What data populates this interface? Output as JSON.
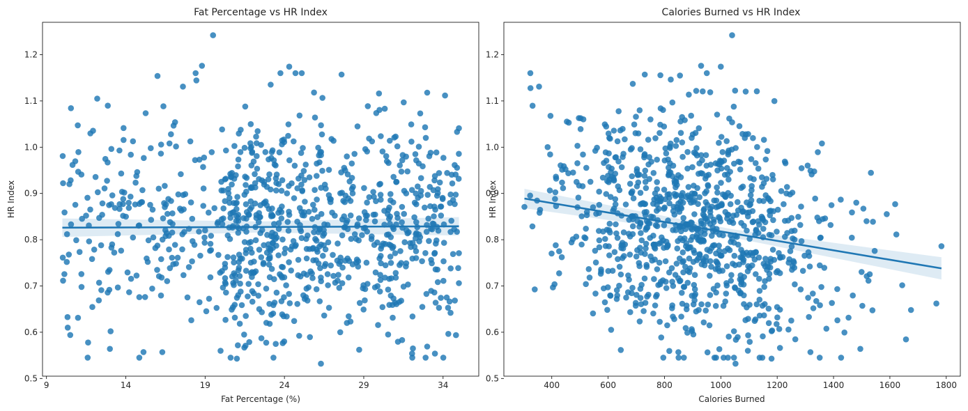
{
  "chart_data": [
    {
      "type": "scatter",
      "title": "Fat Percentage vs HR Index",
      "xlabel": "Fat Percentage (%)",
      "ylabel": "HR Index",
      "xlim": [
        8.75,
        36.25
      ],
      "ylim": [
        0.505,
        1.27
      ],
      "xticks": [
        9,
        14,
        19,
        24,
        29,
        34
      ],
      "yticks": [
        0.5,
        0.6,
        0.7,
        0.8,
        0.9,
        1.0,
        1.1,
        1.2
      ],
      "ytick_labels": [
        "0.5",
        "0.6",
        "0.7",
        "0.8",
        "0.9",
        "1.0",
        "1.1",
        "1.2"
      ],
      "grid": false,
      "point_color": "#1f77b4",
      "point_count": 973,
      "x_range": [
        10,
        35
      ],
      "y_range": [
        0.53,
        1.24
      ],
      "x_center": 26,
      "y_center": 0.83,
      "highlighted_points": [
        {
          "x": 19.5,
          "y": 1.242
        },
        {
          "x": 24.3,
          "y": 1.174
        },
        {
          "x": 18.8,
          "y": 1.176
        },
        {
          "x": 27.6,
          "y": 1.157
        },
        {
          "x": 17.6,
          "y": 1.131
        },
        {
          "x": 12.2,
          "y": 1.105
        },
        {
          "x": 26.3,
          "y": 0.532
        },
        {
          "x": 21.0,
          "y": 0.543
        },
        {
          "x": 10.5,
          "y": 0.594
        },
        {
          "x": 13.0,
          "y": 0.564
        },
        {
          "x": 32.1,
          "y": 0.565
        },
        {
          "x": 33.0,
          "y": 0.569
        },
        {
          "x": 35.0,
          "y": 1.041
        },
        {
          "x": 16.3,
          "y": 0.557
        }
      ],
      "regression": {
        "x": [
          10,
          35
        ],
        "y": [
          0.826,
          0.829
        ],
        "ci_band": 0.02,
        "color": "#1f77b4"
      }
    },
    {
      "type": "scatter",
      "title": "Calories Burned vs HR Index",
      "xlabel": "Calories Burned",
      "ylabel": "HR Index",
      "xlim": [
        230,
        1850
      ],
      "ylim": [
        0.505,
        1.27
      ],
      "xticks": [
        400,
        600,
        800,
        1000,
        1200,
        1400,
        1600,
        1800
      ],
      "yticks": [
        0.5,
        0.6,
        0.7,
        0.8,
        0.9,
        1.0,
        1.1,
        1.2
      ],
      "ytick_labels": [
        "0.5",
        "0.6",
        "0.7",
        "0.8",
        "0.9",
        "1.0",
        "1.1",
        "1.2"
      ],
      "grid": false,
      "point_color": "#1f77b4",
      "point_count": 973,
      "x_range": [
        303,
        1783
      ],
      "y_range": [
        0.53,
        1.24
      ],
      "x_center": 900,
      "y_center": 0.83,
      "highlighted_points": [
        {
          "x": 1040,
          "y": 1.242
        },
        {
          "x": 930,
          "y": 1.176
        },
        {
          "x": 1000,
          "y": 1.174
        },
        {
          "x": 730,
          "y": 1.157
        },
        {
          "x": 855,
          "y": 1.155
        },
        {
          "x": 1783,
          "y": 0.786
        },
        {
          "x": 1765,
          "y": 0.662
        },
        {
          "x": 1675,
          "y": 0.648
        },
        {
          "x": 1495,
          "y": 0.564
        },
        {
          "x": 1052,
          "y": 0.532
        },
        {
          "x": 1180,
          "y": 0.543
        },
        {
          "x": 303,
          "y": 0.871
        },
        {
          "x": 355,
          "y": 1.131
        },
        {
          "x": 1318,
          "y": 0.557
        }
      ],
      "regression": {
        "x": [
          303,
          1783
        ],
        "y": [
          0.889,
          0.738
        ],
        "ci_band": [
          0.021,
          0.009,
          0.024
        ],
        "color": "#1f77b4"
      }
    }
  ]
}
